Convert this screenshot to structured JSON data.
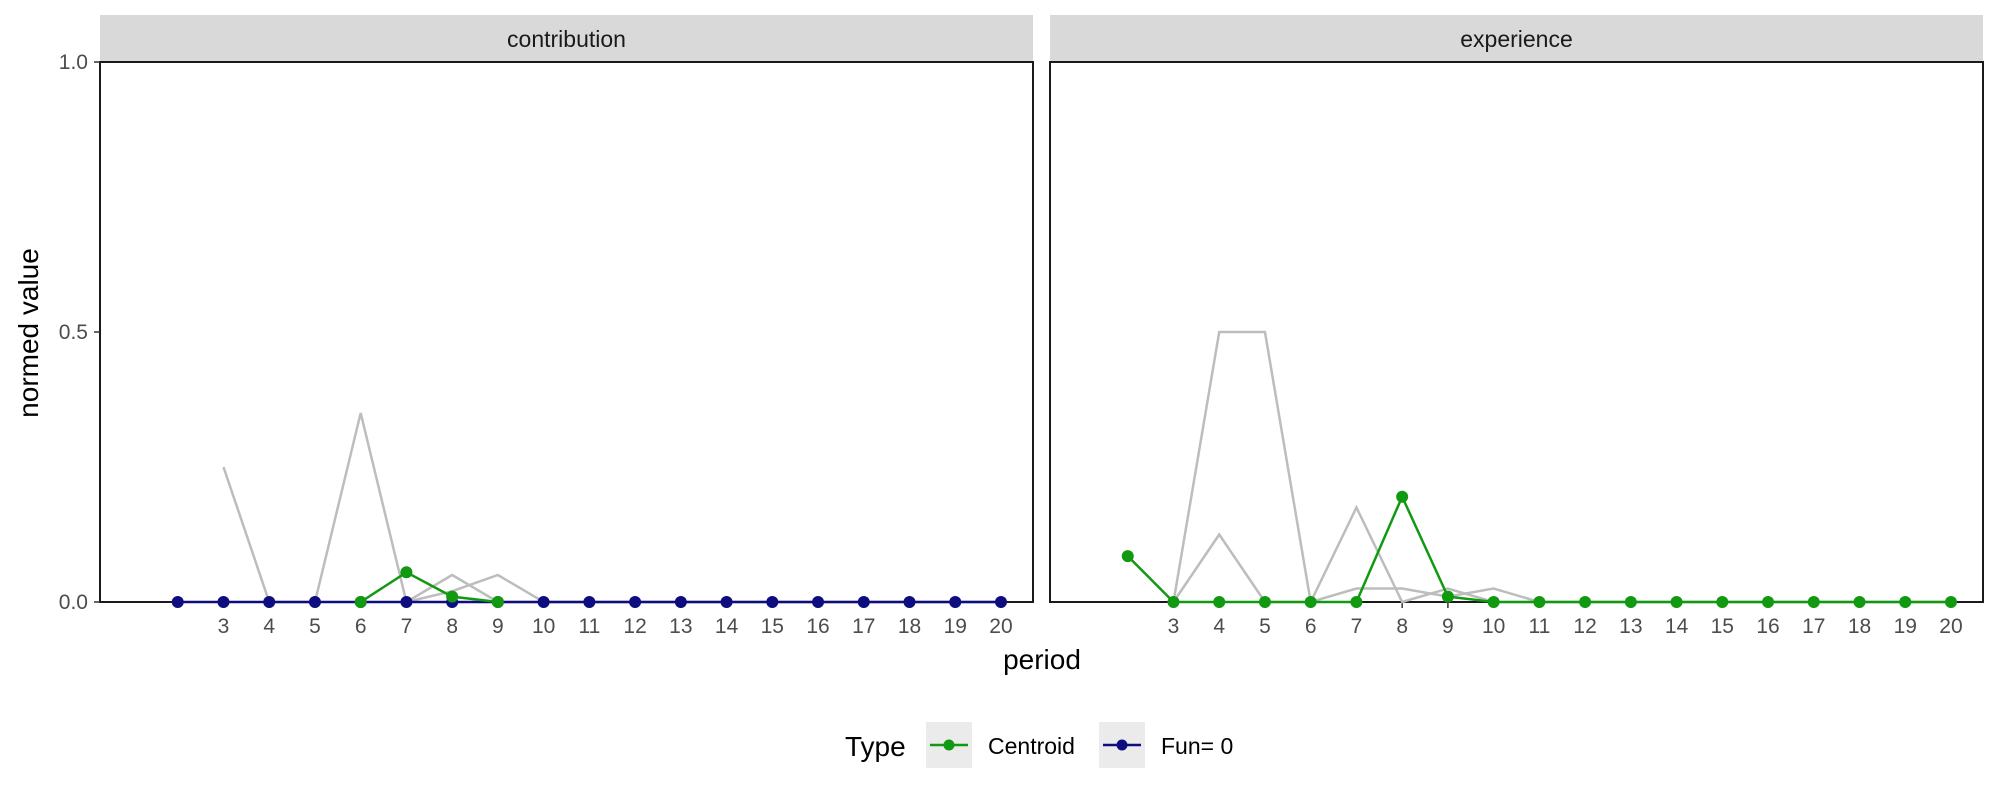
{
  "chart_data": {
    "type": "line",
    "xlabel": "period",
    "ylabel": "normed value",
    "ylim": [
      0,
      1
    ],
    "y_ticks": [
      "0.0",
      "0.5",
      "1.0"
    ],
    "x_ticks": [
      3,
      4,
      5,
      6,
      7,
      8,
      9,
      10,
      11,
      12,
      13,
      14,
      15,
      16,
      17,
      18,
      19,
      20
    ],
    "xlim": [
      1,
      20
    ],
    "grid": false,
    "legend": {
      "title": "Type",
      "placement": "bottom",
      "entries": [
        {
          "label": "Centroid",
          "color": "#119911"
        },
        {
          "label": "Fun= 0",
          "color": "#0d0d7f"
        }
      ]
    },
    "panels": [
      {
        "name": "contribution",
        "gray_lines": [
          {
            "x": [
              3,
              4,
              5,
              6,
              7,
              8,
              9,
              10,
              11,
              12,
              13,
              14,
              15,
              16,
              17,
              18,
              19,
              20
            ],
            "y": [
              0.25,
              0,
              0,
              0.35,
              0,
              0.05,
              0,
              0,
              0,
              0,
              0,
              0,
              0,
              0,
              0,
              0,
              0,
              0
            ]
          },
          {
            "x": [
              7,
              8,
              9,
              10,
              11,
              12,
              13,
              14,
              15,
              16,
              17,
              18,
              19,
              20
            ],
            "y": [
              0,
              0.02,
              0.05,
              0,
              0,
              0,
              0,
              0,
              0,
              0,
              0,
              0,
              0,
              0
            ]
          }
        ],
        "series": [
          {
            "name": "Fun= 0",
            "color": "#0d0d7f",
            "x": [
              2,
              3,
              4,
              5,
              6,
              7,
              8,
              9,
              10,
              11,
              12,
              13,
              14,
              15,
              16,
              17,
              18,
              19,
              20
            ],
            "y": [
              0,
              0,
              0,
              0,
              0,
              0,
              0,
              0,
              0,
              0,
              0,
              0,
              0,
              0,
              0,
              0,
              0,
              0,
              0
            ]
          },
          {
            "name": "Centroid",
            "color": "#119911",
            "x": [
              6,
              7,
              8,
              9
            ],
            "y": [
              0,
              0.055,
              0.01,
              0
            ]
          }
        ]
      },
      {
        "name": "experience",
        "gray_lines": [
          {
            "x": [
              3,
              4,
              5,
              6,
              7,
              8,
              9,
              10,
              11,
              12,
              13,
              14,
              15,
              16,
              17,
              18,
              19,
              20
            ],
            "y": [
              0,
              0.5,
              0.5,
              0,
              0.175,
              0,
              0.025,
              0,
              0,
              0,
              0,
              0,
              0,
              0,
              0,
              0,
              0,
              0
            ]
          },
          {
            "x": [
              3,
              4,
              5,
              6,
              7,
              8,
              9,
              10,
              11,
              12,
              13,
              14,
              15,
              16,
              17,
              18,
              19,
              20
            ],
            "y": [
              0,
              0.125,
              0,
              0,
              0.025,
              0.025,
              0.01,
              0.025,
              0,
              0,
              0,
              0,
              0,
              0,
              0,
              0,
              0,
              0
            ]
          }
        ],
        "series": [
          {
            "name": "Centroid",
            "color": "#119911",
            "x": [
              2,
              3,
              4,
              5,
              6,
              7,
              8,
              9,
              10,
              11,
              12,
              13,
              14,
              15,
              16,
              17,
              18,
              19,
              20
            ],
            "y": [
              0.085,
              0,
              0,
              0,
              0,
              0,
              0.195,
              0.01,
              0,
              0,
              0,
              0,
              0,
              0,
              0,
              0,
              0,
              0,
              0
            ]
          }
        ]
      }
    ]
  }
}
